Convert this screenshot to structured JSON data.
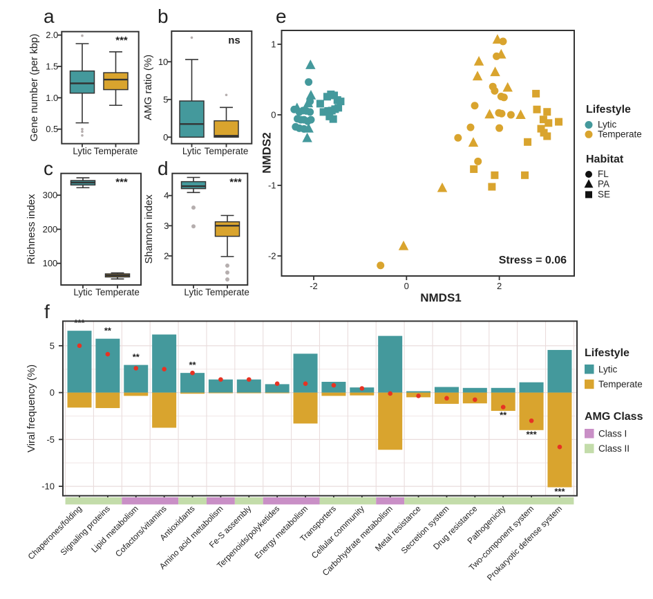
{
  "figure": {
    "background": "#ffffff"
  },
  "colors": {
    "lytic": "#44999c",
    "temperate": "#d9a42e",
    "classI": "#c98fc6",
    "classII": "#c3dcaa",
    "mean_dot": "#e63323",
    "outlier": "#b5aeae",
    "axis": "#333333",
    "grid_major": "#e9dcdc",
    "grid_minor": "#f2e9e9",
    "text": "#222222"
  },
  "chart_data": [
    {
      "id": "a",
      "type": "box",
      "letter": "a",
      "ylabel": "Gene number (per kbp)",
      "sig": "***",
      "yticks": [
        {
          "v": 0.5,
          "label": "0.5"
        },
        {
          "v": 1.0,
          "label": "1.0"
        },
        {
          "v": 1.5,
          "label": "1.5"
        },
        {
          "v": 2.0,
          "label": "2.0"
        }
      ],
      "groups": [
        {
          "label": "Lytic",
          "color": "lytic",
          "q1": 1.074,
          "q3": 1.427,
          "median": 1.23,
          "lo": 0.6,
          "hi": 1.863,
          "outliers": [
            1.99,
            0.5,
            0.46,
            0.4
          ]
        },
        {
          "label": "Temperate",
          "color": "temperate",
          "q1": 1.13,
          "q3": 1.4,
          "median": 1.29,
          "lo": 0.88,
          "hi": 1.733,
          "outliers": []
        }
      ]
    },
    {
      "id": "b",
      "type": "box",
      "letter": "b",
      "ylabel": "AMG ratio (%)",
      "sig": "ns",
      "yticks": [
        {
          "v": 0,
          "label": "0"
        },
        {
          "v": 5,
          "label": "5"
        },
        {
          "v": 10,
          "label": "10"
        }
      ],
      "groups": [
        {
          "label": "Lytic",
          "color": "lytic",
          "q1": 0,
          "q3": 4.8,
          "median": 1.74,
          "lo": 0,
          "hi": 10.3,
          "outliers": [
            13.2
          ]
        },
        {
          "label": "Temperate",
          "color": "temperate",
          "q1": 0,
          "q3": 2.17,
          "median": 0.18,
          "lo": 0,
          "hi": 3.94,
          "outliers": [
            5.6
          ]
        }
      ]
    },
    {
      "id": "c",
      "type": "box",
      "letter": "c",
      "ylabel": "Richness index",
      "sig": "***",
      "yticks": [
        {
          "v": 100,
          "label": "100"
        },
        {
          "v": 200,
          "label": "200"
        },
        {
          "v": 300,
          "label": "300"
        }
      ],
      "groups": [
        {
          "label": "Lytic",
          "color": "lytic",
          "q1": 330,
          "q3": 343,
          "median": 337,
          "lo": 322,
          "hi": 351,
          "outliers": []
        },
        {
          "label": "Temperate",
          "color": "temperate",
          "q1": 60,
          "q3": 69,
          "median": 64.5,
          "lo": 54,
          "hi": 72,
          "outliers": []
        }
      ]
    },
    {
      "id": "d",
      "type": "box",
      "letter": "d",
      "ylabel": "Shannon index",
      "sig": "***",
      "yticks": [
        {
          "v": 2,
          "label": "2"
        },
        {
          "v": 3,
          "label": "3"
        },
        {
          "v": 4,
          "label": "4"
        }
      ],
      "groups": [
        {
          "label": "Lytic",
          "color": "lytic",
          "q1": 4.23,
          "q3": 4.46,
          "median": 4.31,
          "lo": 4.1,
          "hi": 4.6,
          "outliers": [
            3.6,
            2.98
          ]
        },
        {
          "label": "Temperate",
          "color": "temperate",
          "q1": 2.65,
          "q3": 3.13,
          "median": 3.0,
          "lo": 1.98,
          "hi": 3.34,
          "outliers": [
            1.68,
            1.45,
            1.22
          ]
        }
      ]
    },
    {
      "id": "e",
      "type": "scatter",
      "letter": "e",
      "xlabel": "NMDS1",
      "ylabel": "NMDS2",
      "annotation": "Stress = 0.06",
      "xticks": [
        {
          "v": -2,
          "label": "-2"
        },
        {
          "v": 0,
          "label": "0"
        },
        {
          "v": 2,
          "label": "2"
        }
      ],
      "yticks": [
        {
          "v": 1,
          "label": "1"
        },
        {
          "v": 0,
          "label": "0"
        },
        {
          "v": -1,
          "label": "-1"
        },
        {
          "v": -2,
          "label": "-2"
        }
      ],
      "legend_lifestyle": {
        "title": "Lifestyle",
        "items": [
          {
            "label": "Lytic",
            "color": "lytic"
          },
          {
            "label": "Temperate",
            "color": "temperate"
          }
        ]
      },
      "legend_habitat": {
        "title": "Habitat",
        "items": [
          {
            "label": "FL",
            "shape": "circle"
          },
          {
            "label": "PA",
            "shape": "triangle"
          },
          {
            "label": "SE",
            "shape": "square"
          }
        ]
      },
      "points": [
        {
          "x": -2.07,
          "y": 0.7,
          "s": "t",
          "g": "lytic"
        },
        {
          "x": -2.11,
          "y": 0.465,
          "s": "c",
          "g": "lytic"
        },
        {
          "x": -2.06,
          "y": 0.27,
          "s": "t",
          "g": "lytic"
        },
        {
          "x": -2.08,
          "y": 0.19,
          "s": "c",
          "g": "lytic"
        },
        {
          "x": -2.12,
          "y": 0.158,
          "s": "t",
          "g": "lytic"
        },
        {
          "x": -2.42,
          "y": 0.076,
          "s": "c",
          "g": "lytic"
        },
        {
          "x": -2.36,
          "y": 0.09,
          "s": "t",
          "g": "lytic"
        },
        {
          "x": -2.31,
          "y": 0.04,
          "s": "c",
          "g": "lytic"
        },
        {
          "x": -2.23,
          "y": 0.06,
          "s": "c",
          "g": "lytic"
        },
        {
          "x": -2.16,
          "y": 0.055,
          "s": "c",
          "g": "lytic"
        },
        {
          "x": -2.08,
          "y": 0.04,
          "s": "c",
          "g": "lytic"
        },
        {
          "x": -2.35,
          "y": -0.056,
          "s": "c",
          "g": "lytic"
        },
        {
          "x": -2.28,
          "y": -0.07,
          "s": "c",
          "g": "lytic"
        },
        {
          "x": -2.21,
          "y": -0.07,
          "s": "c",
          "g": "lytic"
        },
        {
          "x": -2.13,
          "y": -0.09,
          "s": "c",
          "g": "lytic"
        },
        {
          "x": -2.06,
          "y": -0.07,
          "s": "c",
          "g": "lytic"
        },
        {
          "x": -2.39,
          "y": -0.17,
          "s": "c",
          "g": "lytic"
        },
        {
          "x": -2.31,
          "y": -0.19,
          "s": "c",
          "g": "lytic"
        },
        {
          "x": -2.21,
          "y": -0.2,
          "s": "c",
          "g": "lytic"
        },
        {
          "x": -2.11,
          "y": -0.2,
          "s": "t",
          "g": "lytic"
        },
        {
          "x": -2.14,
          "y": -0.336,
          "s": "t",
          "g": "lytic"
        },
        {
          "x": -1.86,
          "y": 0.158,
          "s": "s",
          "g": "lytic"
        },
        {
          "x": -1.71,
          "y": 0.257,
          "s": "s",
          "g": "lytic"
        },
        {
          "x": -1.63,
          "y": 0.29,
          "s": "s",
          "g": "lytic"
        },
        {
          "x": -1.56,
          "y": 0.275,
          "s": "s",
          "g": "lytic"
        },
        {
          "x": -1.49,
          "y": 0.21,
          "s": "s",
          "g": "lytic"
        },
        {
          "x": -1.42,
          "y": 0.19,
          "s": "s",
          "g": "lytic"
        },
        {
          "x": -1.79,
          "y": 0.04,
          "s": "s",
          "g": "lytic"
        },
        {
          "x": -1.69,
          "y": 0.055,
          "s": "s",
          "g": "lytic"
        },
        {
          "x": -1.61,
          "y": 0.06,
          "s": "s",
          "g": "lytic"
        },
        {
          "x": -1.54,
          "y": 0.08,
          "s": "s",
          "g": "lytic"
        },
        {
          "x": -1.47,
          "y": 0.1,
          "s": "s",
          "g": "lytic"
        },
        {
          "x": -1.66,
          "y": -0.023,
          "s": "s",
          "g": "lytic"
        },
        {
          "x": -1.58,
          "y": -0.06,
          "s": "s",
          "g": "lytic"
        },
        {
          "x": 1.96,
          "y": 1.06,
          "s": "t",
          "g": "temperate"
        },
        {
          "x": 2.08,
          "y": 1.04,
          "s": "c",
          "g": "temperate"
        },
        {
          "x": 1.94,
          "y": 0.83,
          "s": "c",
          "g": "temperate"
        },
        {
          "x": 2.04,
          "y": 0.85,
          "s": "t",
          "g": "temperate"
        },
        {
          "x": 1.56,
          "y": 0.75,
          "s": "t",
          "g": "temperate"
        },
        {
          "x": 1.91,
          "y": 0.6,
          "s": "t",
          "g": "temperate"
        },
        {
          "x": 1.53,
          "y": 0.54,
          "s": "t",
          "g": "temperate"
        },
        {
          "x": 1.86,
          "y": 0.4,
          "s": "c",
          "g": "temperate"
        },
        {
          "x": 1.9,
          "y": 0.34,
          "s": "c",
          "g": "temperate"
        },
        {
          "x": 2.18,
          "y": 0.38,
          "s": "t",
          "g": "temperate"
        },
        {
          "x": 2.04,
          "y": 0.26,
          "s": "c",
          "g": "temperate"
        },
        {
          "x": 2.1,
          "y": 0.247,
          "s": "c",
          "g": "temperate"
        },
        {
          "x": 1.47,
          "y": 0.13,
          "s": "c",
          "g": "temperate"
        },
        {
          "x": 2.79,
          "y": 0.3,
          "s": "s",
          "g": "temperate"
        },
        {
          "x": 1.79,
          "y": 0.0,
          "s": "t",
          "g": "temperate"
        },
        {
          "x": 1.99,
          "y": 0.027,
          "s": "c",
          "g": "temperate"
        },
        {
          "x": 2.05,
          "y": 0.017,
          "s": "c",
          "g": "temperate"
        },
        {
          "x": 2.25,
          "y": 0.0,
          "s": "c",
          "g": "temperate"
        },
        {
          "x": 2.46,
          "y": -0.007,
          "s": "t",
          "g": "temperate"
        },
        {
          "x": 2.81,
          "y": 0.076,
          "s": "s",
          "g": "temperate"
        },
        {
          "x": 3.03,
          "y": 0.042,
          "s": "s",
          "g": "temperate"
        },
        {
          "x": 2.95,
          "y": -0.066,
          "s": "s",
          "g": "temperate"
        },
        {
          "x": 3.06,
          "y": -0.116,
          "s": "s",
          "g": "temperate"
        },
        {
          "x": 3.28,
          "y": -0.099,
          "s": "s",
          "g": "temperate"
        },
        {
          "x": 2.9,
          "y": -0.197,
          "s": "s",
          "g": "temperate"
        },
        {
          "x": 2.96,
          "y": -0.254,
          "s": "s",
          "g": "temperate"
        },
        {
          "x": 3.03,
          "y": -0.303,
          "s": "s",
          "g": "temperate"
        },
        {
          "x": 1.38,
          "y": -0.178,
          "s": "c",
          "g": "temperate"
        },
        {
          "x": 2.0,
          "y": -0.188,
          "s": "c",
          "g": "temperate"
        },
        {
          "x": 1.11,
          "y": -0.326,
          "s": "c",
          "g": "temperate"
        },
        {
          "x": 1.44,
          "y": -0.4,
          "s": "t",
          "g": "temperate"
        },
        {
          "x": 2.61,
          "y": -0.385,
          "s": "s",
          "g": "temperate"
        },
        {
          "x": 1.54,
          "y": -0.66,
          "s": "c",
          "g": "temperate"
        },
        {
          "x": 1.45,
          "y": -0.77,
          "s": "s",
          "g": "temperate"
        },
        {
          "x": 1.9,
          "y": -0.856,
          "s": "s",
          "g": "temperate"
        },
        {
          "x": 2.55,
          "y": -0.856,
          "s": "s",
          "g": "temperate"
        },
        {
          "x": 1.84,
          "y": -1.02,
          "s": "s",
          "g": "temperate"
        },
        {
          "x": 0.77,
          "y": -1.043,
          "s": "t",
          "g": "temperate"
        },
        {
          "x": -0.064,
          "y": -1.866,
          "s": "t",
          "g": "temperate"
        },
        {
          "x": -0.56,
          "y": -2.135,
          "s": "c",
          "g": "temperate"
        }
      ]
    },
    {
      "id": "f",
      "type": "bar",
      "letter": "f",
      "ylabel": "Viral frequency (%)",
      "yticks": [
        {
          "v": 5,
          "label": "5"
        },
        {
          "v": 0,
          "label": "0"
        },
        {
          "v": -5,
          "label": "-5"
        },
        {
          "v": -10,
          "label": "-10"
        }
      ],
      "grid_minor": [
        2.5,
        -2.5,
        -7.5
      ],
      "legend_lifestyle": {
        "title": "Lifestyle",
        "items": [
          {
            "label": "Lytic",
            "color": "lytic"
          },
          {
            "label": "Temperate",
            "color": "temperate"
          }
        ]
      },
      "legend_amg": {
        "title": "AMG Class",
        "items": [
          {
            "label": "Class I",
            "color": "classI"
          },
          {
            "label": "Class II",
            "color": "classII"
          }
        ]
      },
      "categories": [
        {
          "label": "Chaperones/folding",
          "amg_class": "II",
          "lytic": 6.6,
          "temperate": -1.6,
          "mean": 5.0,
          "sig": "***",
          "sig_side": "above"
        },
        {
          "label": "Signaling proteins",
          "amg_class": "II",
          "lytic": 5.75,
          "temperate": -1.65,
          "mean": 4.1,
          "sig": "**",
          "sig_side": "above"
        },
        {
          "label": "Lipid metabolism",
          "amg_class": "I",
          "lytic": 2.95,
          "temperate": -0.35,
          "mean": 2.6,
          "sig": "**",
          "sig_side": "above"
        },
        {
          "label": "Cofactors/vitamins",
          "amg_class": "I",
          "lytic": 6.2,
          "temperate": -3.75,
          "mean": 2.5,
          "sig": "",
          "sig_side": ""
        },
        {
          "label": "Antioxidants",
          "amg_class": "II",
          "lytic": 2.1,
          "temperate": -0.12,
          "mean": 2.1,
          "sig": "**",
          "sig_side": "above"
        },
        {
          "label": "Amino acid metabolism",
          "amg_class": "I",
          "lytic": 1.4,
          "temperate": -0.07,
          "mean": 1.4,
          "sig": "",
          "sig_side": ""
        },
        {
          "label": "Fe-S assembly",
          "amg_class": "II",
          "lytic": 1.4,
          "temperate": -0.07,
          "mean": 1.4,
          "sig": "",
          "sig_side": ""
        },
        {
          "label": "Terpenoids/polyketides",
          "amg_class": "I",
          "lytic": 0.9,
          "temperate": -0.07,
          "mean": 0.95,
          "sig": "",
          "sig_side": ""
        },
        {
          "label": "Energy metabolism",
          "amg_class": "I",
          "lytic": 4.15,
          "temperate": -3.3,
          "mean": 0.95,
          "sig": "",
          "sig_side": ""
        },
        {
          "label": "Transporters",
          "amg_class": "II",
          "lytic": 1.15,
          "temperate": -0.35,
          "mean": 0.78,
          "sig": "",
          "sig_side": ""
        },
        {
          "label": "Cellular community",
          "amg_class": "II",
          "lytic": 0.55,
          "temperate": -0.3,
          "mean": 0.45,
          "sig": "",
          "sig_side": ""
        },
        {
          "label": "Carbohydrate metabolism",
          "amg_class": "I",
          "lytic": 6.05,
          "temperate": -6.1,
          "mean": -0.1,
          "sig": "",
          "sig_side": ""
        },
        {
          "label": "Metal resistance",
          "amg_class": "II",
          "lytic": 0.15,
          "temperate": -0.5,
          "mean": -0.35,
          "sig": "",
          "sig_side": ""
        },
        {
          "label": "Secretion system",
          "amg_class": "II",
          "lytic": 0.6,
          "temperate": -1.2,
          "mean": -0.6,
          "sig": "",
          "sig_side": ""
        },
        {
          "label": "Drug resistance",
          "amg_class": "II",
          "lytic": 0.5,
          "temperate": -1.15,
          "mean": -0.75,
          "sig": "",
          "sig_side": ""
        },
        {
          "label": "Pathogenicity",
          "amg_class": "II",
          "lytic": 0.5,
          "temperate": -1.95,
          "mean": -1.55,
          "sig": "**",
          "sig_side": "below"
        },
        {
          "label": "Two-component system",
          "amg_class": "II",
          "lytic": 1.1,
          "temperate": -4.0,
          "mean": -3.0,
          "sig": "***",
          "sig_side": "below"
        },
        {
          "label": "Prokaryotic defense system",
          "amg_class": "II",
          "lytic": 4.55,
          "temperate": -10.1,
          "mean": -5.8,
          "sig": "***",
          "sig_side": "below"
        }
      ]
    }
  ]
}
